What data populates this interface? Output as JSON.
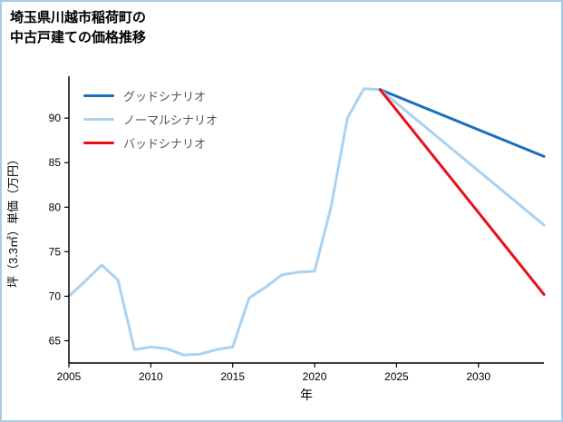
{
  "title": {
    "line1": "埼玉県川越市稲荷町の",
    "line2": "中古戸建ての価格推移"
  },
  "chart_data": {
    "type": "line",
    "title": "埼玉県川越市稲荷町の中古戸建ての価格推移",
    "xlabel": "年",
    "ylabel": "坪（3.3㎡）単価（万円）",
    "xlim": [
      2005,
      2034
    ],
    "ylim": [
      62.5,
      94.5
    ],
    "xticks": [
      2005,
      2010,
      2015,
      2020,
      2025,
      2030
    ],
    "yticks": [
      65,
      70,
      75,
      80,
      85,
      90
    ],
    "grid": false,
    "legend_position": "top-left",
    "axis_color": "#000000",
    "series": [
      {
        "id": "historical",
        "label": "",
        "color": "#a9d2f3",
        "line_width": 3,
        "in_legend": false,
        "x": [
          2005,
          2006,
          2007,
          2008,
          2009,
          2010,
          2011,
          2012,
          2013,
          2014,
          2015,
          2016,
          2017,
          2018,
          2019,
          2020,
          2021,
          2022,
          2023,
          2024
        ],
        "y": [
          70.0,
          71.7,
          73.5,
          71.8,
          64.0,
          64.3,
          64.1,
          63.4,
          63.5,
          64.0,
          64.3,
          69.8,
          71.0,
          72.4,
          72.7,
          72.8,
          80.0,
          90.0,
          93.3,
          93.2
        ]
      },
      {
        "id": "good-scenario",
        "label": "グッドシナリオ",
        "color": "#1b6fbd",
        "line_width": 3,
        "in_legend": true,
        "x": [
          2024,
          2034
        ],
        "y": [
          93.2,
          85.7
        ]
      },
      {
        "id": "normal-scenario",
        "label": "ノーマルシナリオ",
        "color": "#a9d2f3",
        "line_width": 3,
        "in_legend": true,
        "x": [
          2024,
          2034
        ],
        "y": [
          93.2,
          78.0
        ]
      },
      {
        "id": "bad-scenario",
        "label": "バッドシナリオ",
        "color": "#ea0e18",
        "line_width": 3,
        "in_legend": true,
        "x": [
          2024,
          2034
        ],
        "y": [
          93.2,
          70.2
        ]
      }
    ]
  }
}
